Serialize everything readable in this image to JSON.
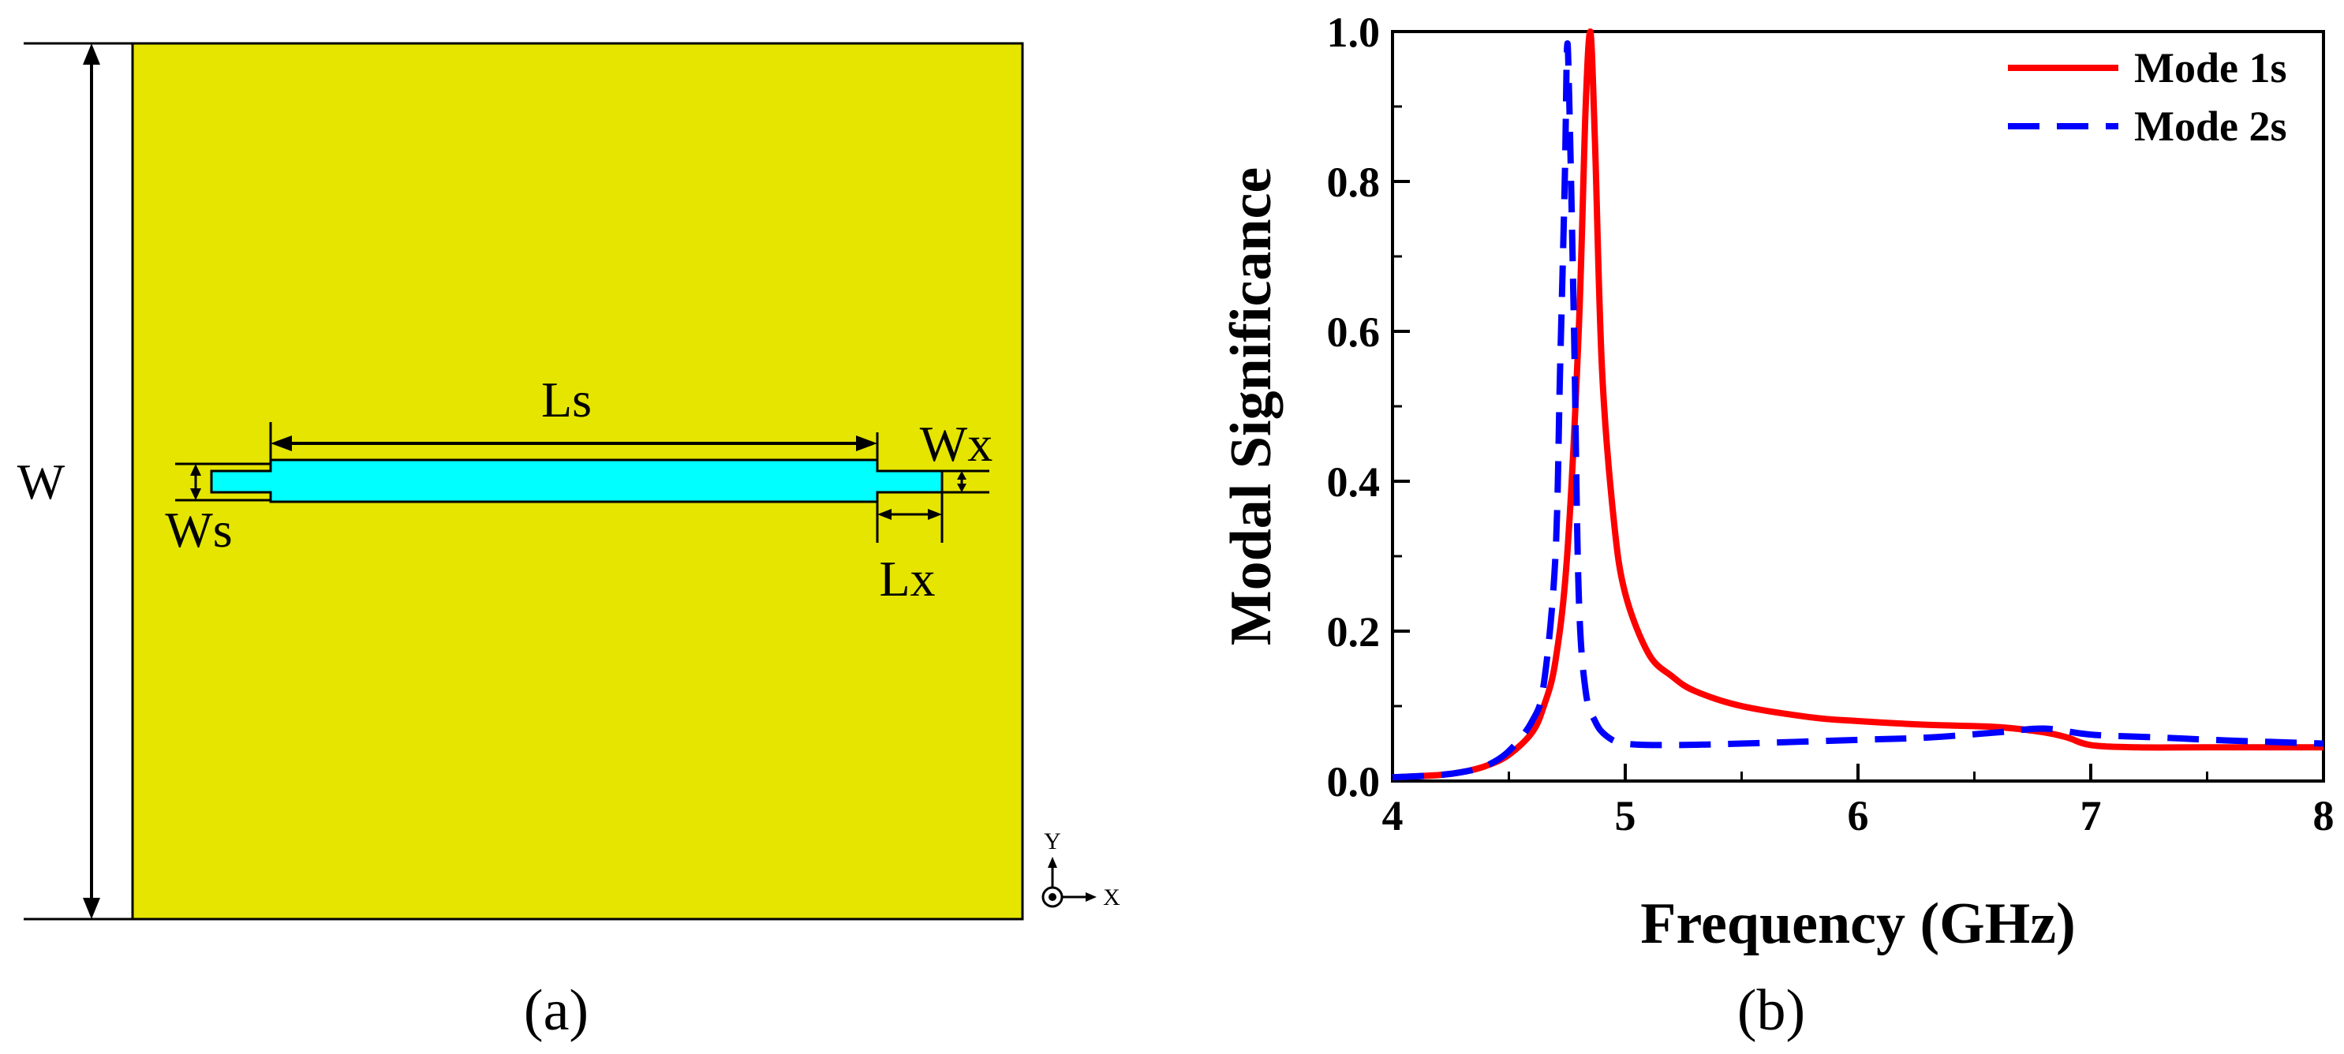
{
  "panel_a": {
    "caption": "(a)",
    "substrate_color": "#e5e500",
    "slot_color": "#00ffff",
    "labels": {
      "w": "W",
      "ls": "Ls",
      "wx": "Wx",
      "ws": "Ws",
      "lx": "Lx"
    },
    "coord": {
      "y": "Y",
      "x": "X"
    }
  },
  "panel_b": {
    "caption": "(b)"
  },
  "chart_data": {
    "type": "line",
    "title": "",
    "xlabel": "Frequency (GHz)",
    "ylabel": "Modal Significance",
    "xlim": [
      4,
      8
    ],
    "ylim": [
      0,
      1.0
    ],
    "x_ticks": [
      4,
      5,
      6,
      7,
      8
    ],
    "x_tick_labels": [
      "4",
      "5",
      "6",
      "7",
      "8"
    ],
    "y_ticks": [
      0,
      0.2,
      0.4,
      0.6,
      0.8,
      1.0
    ],
    "y_tick_labels": [
      "0.0",
      "0.2",
      "0.4",
      "0.6",
      "0.8",
      "1.0"
    ],
    "legend_position": "top-right",
    "series": [
      {
        "name": "Mode 1s",
        "color": "#ff0000",
        "style": "solid",
        "x": [
          4.0,
          4.2,
          4.3,
          4.4,
          4.5,
          4.6,
          4.65,
          4.7,
          4.75,
          4.8,
          4.83,
          4.85,
          4.87,
          4.9,
          4.95,
          5.0,
          5.1,
          5.2,
          5.3,
          5.5,
          5.8,
          6.0,
          6.3,
          6.6,
          6.8,
          6.9,
          7.0,
          7.2,
          7.5,
          8.0
        ],
        "y": [
          0.005,
          0.008,
          0.012,
          0.02,
          0.035,
          0.065,
          0.1,
          0.16,
          0.3,
          0.6,
          0.9,
          1.0,
          0.85,
          0.55,
          0.35,
          0.25,
          0.17,
          0.14,
          0.12,
          0.1,
          0.085,
          0.08,
          0.075,
          0.072,
          0.065,
          0.058,
          0.048,
          0.045,
          0.045,
          0.045
        ]
      },
      {
        "name": "Mode 2s",
        "color": "#0000ff",
        "style": "dashed",
        "x": [
          4.0,
          4.2,
          4.3,
          4.4,
          4.5,
          4.6,
          4.65,
          4.7,
          4.72,
          4.74,
          4.75,
          4.76,
          4.78,
          4.8,
          4.83,
          4.87,
          4.92,
          5.0,
          5.2,
          5.5,
          6.0,
          6.3,
          6.6,
          6.8,
          7.0,
          7.3,
          7.6,
          8.0
        ],
        "y": [
          0.005,
          0.008,
          0.012,
          0.02,
          0.04,
          0.08,
          0.13,
          0.3,
          0.55,
          0.8,
          0.98,
          0.9,
          0.6,
          0.25,
          0.12,
          0.08,
          0.06,
          0.05,
          0.048,
          0.05,
          0.055,
          0.058,
          0.065,
          0.07,
          0.062,
          0.058,
          0.054,
          0.05
        ]
      }
    ]
  }
}
